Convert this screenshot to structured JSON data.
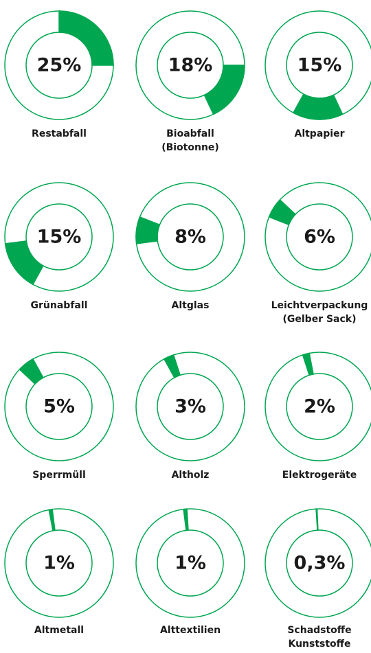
{
  "chart_data": {
    "type": "donut",
    "categories": [
      "Restabfall",
      [
        "Bioabfall",
        "(Biotonne)"
      ],
      "Altpapier",
      "Grünabfall",
      "Altglas",
      [
        "Leichtverpackung",
        "(Gelber Sack)"
      ],
      "Sperrmüll",
      "Altholz",
      "Elektrogeräte",
      "Altmetall",
      "Alttextilien",
      [
        "Schadstoffe",
        "Kunststoffe"
      ]
    ],
    "values": [
      25,
      18,
      15,
      15,
      8,
      6,
      5,
      3,
      2,
      1,
      1,
      0.3
    ],
    "value_labels": [
      "25%",
      "18%",
      "15%",
      "15%",
      "8%",
      "6%",
      "5%",
      "3%",
      "2%",
      "1%",
      "1%",
      "0,3%"
    ],
    "color": "#00a650"
  }
}
